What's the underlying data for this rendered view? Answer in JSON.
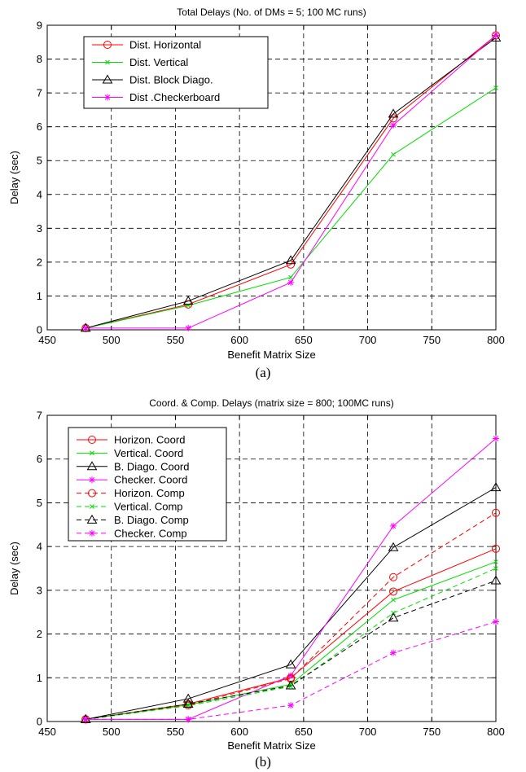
{
  "chart_data": [
    {
      "type": "line",
      "title": "Total Delays (No. of DMs = 5; 100 MC runs)",
      "xlabel": "Benefit Matrix Size",
      "ylabel": "Delay (sec)",
      "caption": "(a)",
      "xlim": [
        450,
        800
      ],
      "ylim": [
        0,
        9
      ],
      "xticks": [
        450,
        500,
        550,
        600,
        650,
        700,
        750,
        800
      ],
      "yticks": [
        0,
        1,
        2,
        3,
        4,
        5,
        6,
        7,
        8,
        9
      ],
      "grid": true,
      "legend_position": "top-left",
      "x": [
        480,
        560,
        640,
        720,
        800
      ],
      "series": [
        {
          "name": "Dist. Horizontal",
          "color": "#ff0000",
          "marker": "circle",
          "dash": "solid",
          "values": [
            0.05,
            0.75,
            1.93,
            6.25,
            8.7
          ]
        },
        {
          "name": "Dist. Vertical",
          "color": "#00dd00",
          "marker": "x",
          "dash": "solid",
          "values": [
            0.05,
            0.72,
            1.55,
            5.18,
            7.15
          ]
        },
        {
          "name": "Dist. Block Diago.",
          "color": "#000000",
          "marker": "triangle",
          "dash": "solid",
          "values": [
            0.05,
            0.85,
            2.05,
            6.38,
            8.63
          ]
        },
        {
          "name": "Dist .Checkerboard",
          "color": "#ff00ff",
          "marker": "star",
          "dash": "solid",
          "values": [
            0.05,
            0.05,
            1.4,
            6.05,
            8.7
          ]
        }
      ]
    },
    {
      "type": "line",
      "title": "Coord. & Comp. Delays (matrix size = 800; 100MC runs)",
      "xlabel": "Benefit Matrix Size",
      "ylabel": "Delay (sec)",
      "caption": "(b)",
      "xlim": [
        450,
        800
      ],
      "ylim": [
        0,
        7
      ],
      "xticks": [
        450,
        500,
        550,
        600,
        650,
        700,
        750,
        800
      ],
      "yticks": [
        0,
        1,
        2,
        3,
        4,
        5,
        6,
        7
      ],
      "grid": true,
      "legend_position": "top-left",
      "x": [
        480,
        560,
        640,
        720,
        800
      ],
      "series": [
        {
          "name": "Horizon. Coord",
          "color": "#ff0000",
          "marker": "circle",
          "dash": "solid",
          "values": [
            0.05,
            0.4,
            1.0,
            2.97,
            3.95
          ]
        },
        {
          "name": "Vertical. Coord",
          "color": "#00dd00",
          "marker": "x",
          "dash": "solid",
          "values": [
            0.05,
            0.38,
            0.85,
            2.78,
            3.65
          ]
        },
        {
          "name": "B. Diago. Coord",
          "color": "#000000",
          "marker": "triangle",
          "dash": "solid",
          "values": [
            0.05,
            0.52,
            1.3,
            3.98,
            5.35
          ]
        },
        {
          "name": "Checker. Coord",
          "color": "#ff00ff",
          "marker": "star",
          "dash": "solid",
          "values": [
            0.05,
            0.05,
            1.05,
            4.47,
            6.47
          ]
        },
        {
          "name": "Horizon. Comp",
          "color": "#ff0000",
          "marker": "circle",
          "dash": "dashed",
          "values": [
            0.05,
            0.37,
            0.98,
            3.3,
            4.77
          ]
        },
        {
          "name": "Vertical. Comp",
          "color": "#00dd00",
          "marker": "x",
          "dash": "dashed",
          "values": [
            0.05,
            0.36,
            0.8,
            2.48,
            3.5
          ]
        },
        {
          "name": "B. Diago. Comp",
          "color": "#000000",
          "marker": "triangle",
          "dash": "dashed",
          "values": [
            0.05,
            0.4,
            0.82,
            2.37,
            3.22
          ]
        },
        {
          "name": "Checker. Comp",
          "color": "#ff00ff",
          "marker": "star",
          "dash": "dashed",
          "values": [
            0.05,
            0.05,
            0.37,
            1.57,
            2.28
          ]
        }
      ]
    }
  ]
}
